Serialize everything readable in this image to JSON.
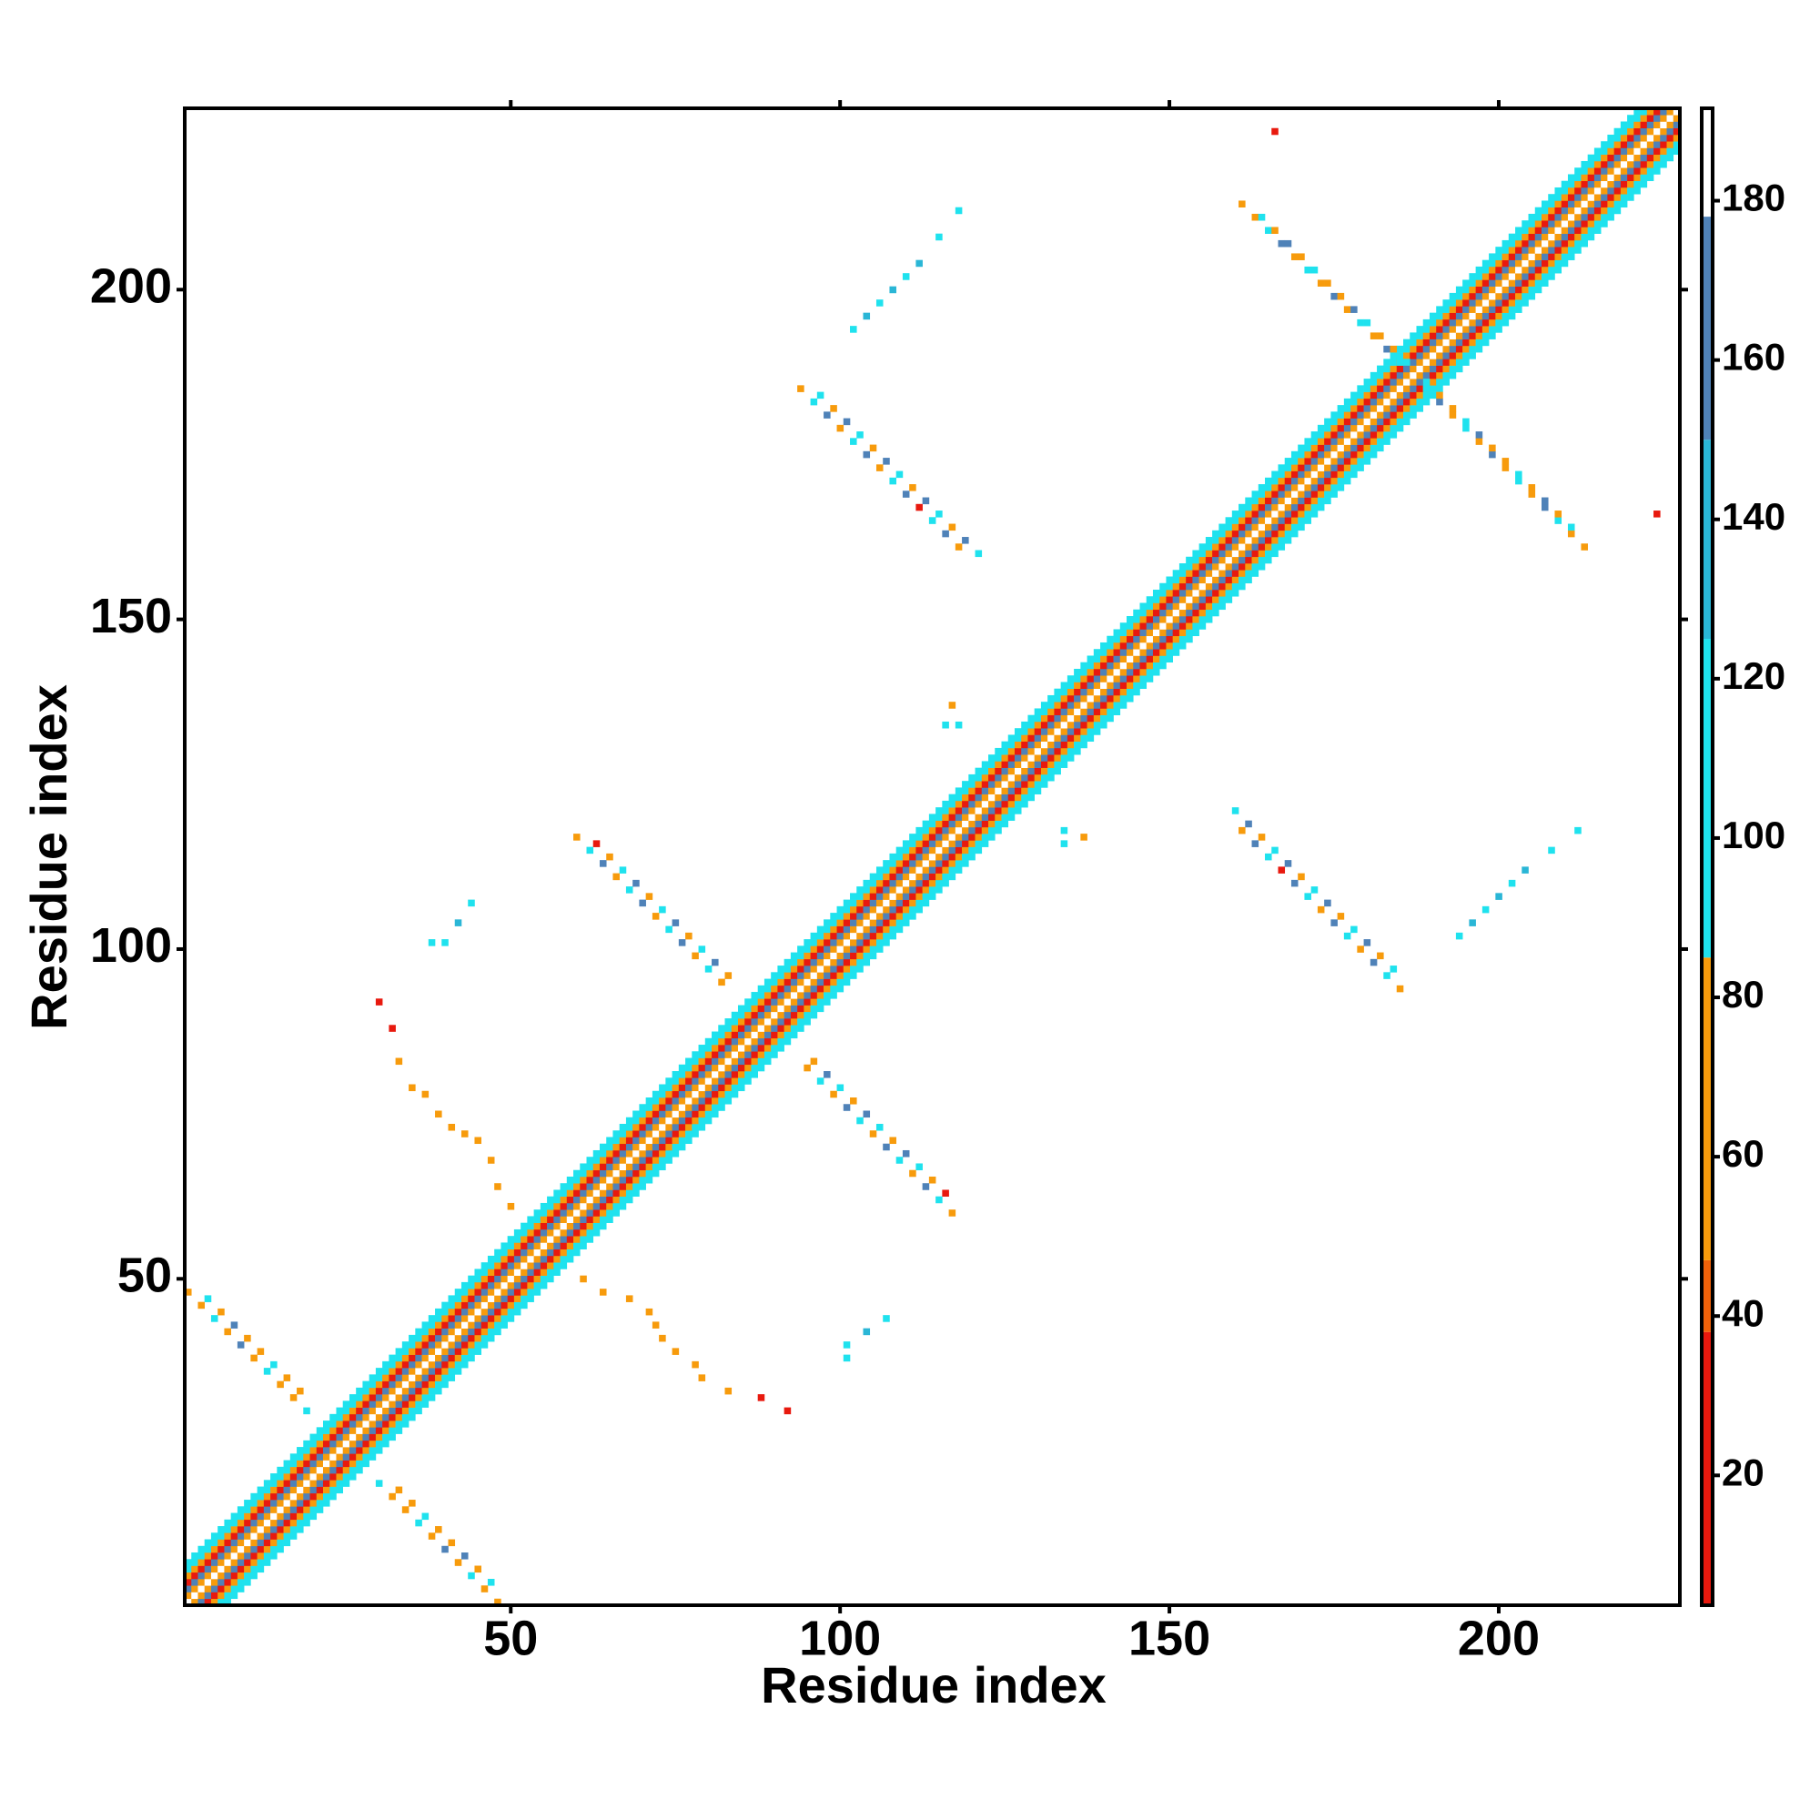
{
  "chart_data": {
    "type": "heatmap",
    "xlabel": "Residue index",
    "ylabel": "Residue index",
    "xlim": [
      0.5,
      227.5
    ],
    "ylim": [
      0.5,
      227.5
    ],
    "xticks": [
      50,
      100,
      150,
      200
    ],
    "yticks": [
      50,
      100,
      150,
      200
    ],
    "symmetric": true,
    "diagonal": {
      "start": 1,
      "end": 227,
      "offsets": [
        0,
        1,
        2,
        3,
        4,
        5,
        6
      ],
      "values": [
        185,
        65,
        150,
        25,
        60,
        110,
        100
      ]
    },
    "cells": {
      "x": [
        94,
        96,
        98,
        100,
        102,
        104,
        106,
        108,
        110,
        112,
        114,
        116,
        118,
        97,
        99,
        101,
        103,
        105,
        107,
        109,
        111,
        113,
        115,
        117,
        119,
        121,
        60,
        62,
        64,
        66,
        68,
        70,
        72,
        74,
        76,
        78,
        80,
        82,
        63,
        65,
        67,
        69,
        71,
        73,
        75,
        77,
        79,
        81,
        83,
        1,
        3,
        5,
        7,
        9,
        11,
        13,
        15,
        17,
        19,
        4,
        6,
        8,
        10,
        12,
        14,
        16,
        18,
        30,
        32,
        33,
        35,
        37,
        39,
        41,
        43,
        45,
        47,
        48,
        50,
        161,
        163,
        165,
        167,
        169,
        171,
        173,
        175,
        177,
        179,
        181,
        183,
        185,
        164,
        166,
        168,
        170,
        172,
        174,
        176,
        178,
        180,
        182,
        184,
        186,
        102,
        104,
        106,
        108,
        110,
        112,
        115,
        118,
        166,
        116,
        118,
        117,
        38,
        40,
        42,
        44
      ],
      "y": [
        185,
        183,
        181,
        179,
        177,
        175,
        173,
        171,
        169,
        167,
        165,
        163,
        161,
        184,
        182,
        180,
        178,
        176,
        174,
        172,
        170,
        168,
        166,
        164,
        162,
        160,
        117,
        115,
        113,
        111,
        109,
        107,
        105,
        103,
        101,
        99,
        97,
        95,
        116,
        114,
        112,
        110,
        108,
        106,
        104,
        102,
        100,
        98,
        96,
        48,
        46,
        44,
        42,
        40,
        38,
        36,
        34,
        32,
        30,
        47,
        45,
        43,
        41,
        39,
        37,
        35,
        33,
        92,
        88,
        83,
        79,
        78,
        75,
        73,
        72,
        71,
        68,
        64,
        61,
        213,
        211,
        209,
        207,
        205,
        203,
        201,
        199,
        197,
        195,
        193,
        191,
        189,
        211,
        209,
        207,
        205,
        203,
        201,
        199,
        197,
        195,
        193,
        191,
        189,
        194,
        196,
        198,
        200,
        202,
        204,
        208,
        212,
        224,
        134,
        134,
        137,
        101,
        101,
        104,
        107
      ],
      "values": [
        70,
        100,
        160,
        70,
        100,
        160,
        70,
        100,
        160,
        30,
        100,
        160,
        70,
        100,
        65,
        150,
        100,
        65,
        150,
        100,
        65,
        150,
        100,
        65,
        150,
        110,
        70,
        100,
        160,
        70,
        100,
        160,
        70,
        100,
        160,
        70,
        100,
        70,
        30,
        65,
        110,
        150,
        65,
        100,
        150,
        65,
        110,
        150,
        70,
        70,
        65,
        100,
        70,
        150,
        65,
        100,
        70,
        65,
        110,
        100,
        70,
        150,
        65,
        70,
        100,
        65,
        70,
        30,
        30,
        70,
        70,
        65,
        70,
        70,
        65,
        70,
        65,
        70,
        70,
        70,
        65,
        100,
        150,
        70,
        100,
        65,
        150,
        70,
        100,
        65,
        150,
        110,
        100,
        70,
        150,
        65,
        100,
        70,
        65,
        150,
        100,
        70,
        65,
        110,
        110,
        140,
        110,
        140,
        100,
        140,
        110,
        100,
        30,
        110,
        110,
        70,
        120,
        100,
        140,
        110
      ]
    },
    "colorbar": {
      "bounds": [
        3.7,
        38,
        47,
        85,
        125,
        150,
        178,
        191.6
      ],
      "colors": [
        "#e8190e",
        "#f0620a",
        "#f79b0c",
        "#1fe2ee",
        "#2ab6d6",
        "#4f82b8",
        "#ffffff"
      ],
      "ticks": [
        20,
        40,
        60,
        80,
        100,
        120,
        140,
        160,
        180
      ]
    }
  }
}
